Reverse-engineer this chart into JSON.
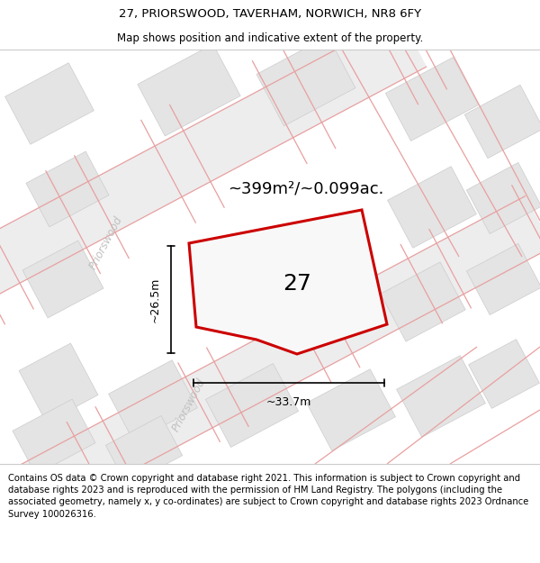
{
  "title": "27, PRIORSWOOD, TAVERHAM, NORWICH, NR8 6FY",
  "subtitle": "Map shows position and indicative extent of the property.",
  "footer": "Contains OS data © Crown copyright and database right 2021. This information is subject to Crown copyright and database rights 2023 and is reproduced with the permission of HM Land Registry. The polygons (including the associated geometry, namely x, y co-ordinates) are subject to Crown copyright and database rights 2023 Ordnance Survey 100026316.",
  "area_label": "~399m²/~0.099ac.",
  "number_label": "27",
  "dim_width": "~33.7m",
  "dim_height": "~26.5m",
  "map_bg": "#f5f5f5",
  "building_fill": "#e4e4e4",
  "building_edge": "#cccccc",
  "road_fill": "#f0f0f0",
  "highlight_color": "#cc0000",
  "road_pink": "#e8a0a0",
  "road_text_color": "#c0c0c0",
  "street_name": "Priorswood",
  "title_fontsize": 9.5,
  "subtitle_fontsize": 8.5,
  "footer_fontsize": 7.2,
  "ROAD_ANG": -28
}
